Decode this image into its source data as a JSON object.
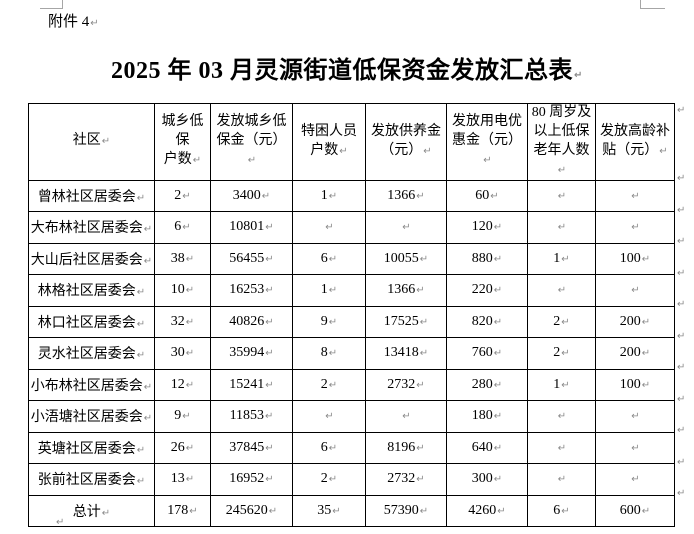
{
  "page": {
    "attachment_label": "附件 4",
    "title": "2025 年 03 月灵源街道低保资金发放汇总表"
  },
  "marks": {
    "pilcrow": "↵"
  },
  "table": {
    "headers": [
      "社区",
      "城乡低保\n户数",
      "发放城乡低\n保金（元）",
      "特困人员\n户数",
      "发放供养金\n（元）",
      "发放用电优\n惠金（元）",
      "80 周岁及\n以上低保\n老年人数",
      "发放高龄补\n贴（元）"
    ],
    "rows": [
      [
        "曾林社区居委会",
        "2",
        "3400",
        "1",
        "1366",
        "60",
        "",
        ""
      ],
      [
        "大布林社区居委会",
        "6",
        "10801",
        "",
        "",
        "120",
        "",
        ""
      ],
      [
        "大山后社区居委会",
        "38",
        "56455",
        "6",
        "10055",
        "880",
        "1",
        "100"
      ],
      [
        "林格社区居委会",
        "10",
        "16253",
        "1",
        "1366",
        "220",
        "",
        ""
      ],
      [
        "林口社区居委会",
        "32",
        "40826",
        "9",
        "17525",
        "820",
        "2",
        "200"
      ],
      [
        "灵水社区居委会",
        "30",
        "35994",
        "8",
        "13418",
        "760",
        "2",
        "200"
      ],
      [
        "小布林社区居委会",
        "12",
        "15241",
        "2",
        "2732",
        "280",
        "1",
        "100"
      ],
      [
        "小浯塘社区居委会",
        "9",
        "11853",
        "",
        "",
        "180",
        "",
        ""
      ],
      [
        "英塘社区居委会",
        "26",
        "37845",
        "6",
        "8196",
        "640",
        "",
        ""
      ],
      [
        "张前社区居委会",
        "13",
        "16952",
        "2",
        "2732",
        "300",
        "",
        ""
      ],
      [
        "总计",
        "178",
        "245620",
        "35",
        "57390",
        "4260",
        "6",
        "600"
      ]
    ]
  }
}
